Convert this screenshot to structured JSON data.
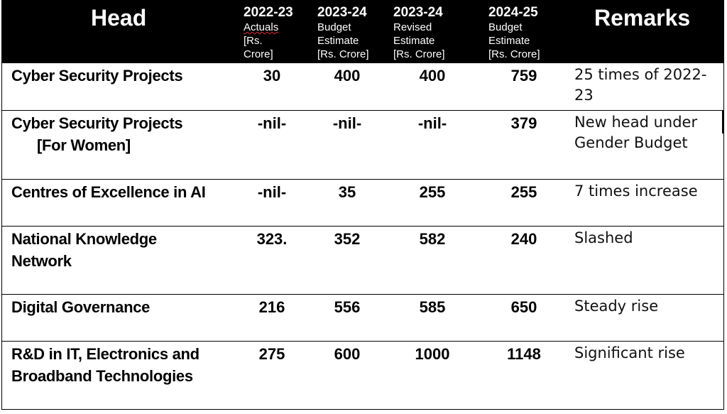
{
  "header": {
    "head": "Head",
    "remarks": "Remarks",
    "columns": [
      {
        "year": "2022-23",
        "sub": [
          "Actuals",
          "[Rs.",
          "Crore]"
        ]
      },
      {
        "year": "2023-24",
        "sub": [
          "Budget",
          "Estimate",
          "[Rs. Crore]"
        ]
      },
      {
        "year": "2023-24",
        "sub": [
          "Revised",
          "Estimate",
          "[Rs. Crore]"
        ]
      },
      {
        "year": "2024-25",
        "sub": [
          "Budget",
          "Estimate",
          "[Rs. Crore]"
        ]
      }
    ]
  },
  "rows": [
    {
      "head": [
        "Cyber Security Projects"
      ],
      "values": [
        "30",
        "400",
        "400",
        "759"
      ],
      "remarks": "25 times of 2022-23"
    },
    {
      "head": [
        "Cyber Security Projects",
        "[For Women]"
      ],
      "values": [
        "-nil-",
        "-nil-",
        "-nil-",
        "379"
      ],
      "remarks": "New head under Gender Budget"
    },
    {
      "head": [
        "Centres of Excellence in AI"
      ],
      "values": [
        "-nil-",
        "35",
        "255",
        "255"
      ],
      "remarks": "7 times increase"
    },
    {
      "head": [
        "National Knowledge",
        "Network"
      ],
      "values": [
        "323.",
        "352",
        "582",
        "240"
      ],
      "remarks": "Slashed"
    },
    {
      "head": [
        "Digital Governance"
      ],
      "values": [
        "216",
        "556",
        "585",
        "650"
      ],
      "remarks": "Steady rise"
    },
    {
      "head": [
        "R&D in IT, Electronics and",
        "Broadband Technologies"
      ],
      "values": [
        "275",
        "600",
        "1000",
        "1148"
      ],
      "remarks": "Significant rise"
    }
  ]
}
